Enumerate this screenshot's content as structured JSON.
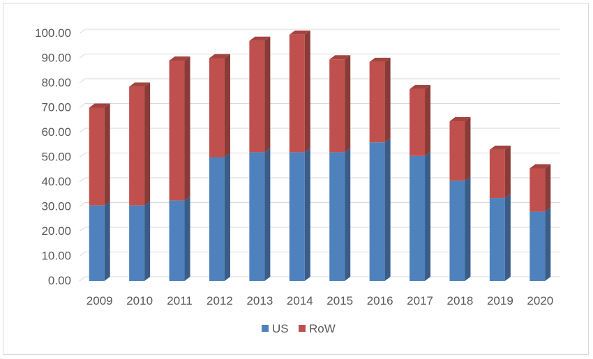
{
  "chart_data": {
    "type": "bar",
    "stacked": true,
    "three_d": true,
    "title": "",
    "xlabel": "",
    "ylabel": "",
    "categories": [
      "2009",
      "2010",
      "2011",
      "2012",
      "2013",
      "2014",
      "2015",
      "2016",
      "2017",
      "2018",
      "2019",
      "2020"
    ],
    "series": [
      {
        "name": "US",
        "color": "#4f81bd",
        "values": [
          30.5,
          30.5,
          32.5,
          50.0,
          52.0,
          52.0,
          52.0,
          56.0,
          50.5,
          40.5,
          33.5,
          28.0
        ]
      },
      {
        "name": "RoW",
        "color": "#c0504d",
        "values": [
          39.5,
          48.0,
          56.5,
          40.0,
          45.0,
          47.5,
          37.5,
          32.5,
          27.0,
          24.0,
          19.5,
          17.5
        ]
      }
    ],
    "ylim": [
      0,
      100
    ],
    "y_ticks": [
      "0.00",
      "10.00",
      "20.00",
      "30.00",
      "40.00",
      "50.00",
      "60.00",
      "70.00",
      "80.00",
      "90.00",
      "100.00"
    ],
    "grid": true,
    "legend_position": "bottom"
  }
}
